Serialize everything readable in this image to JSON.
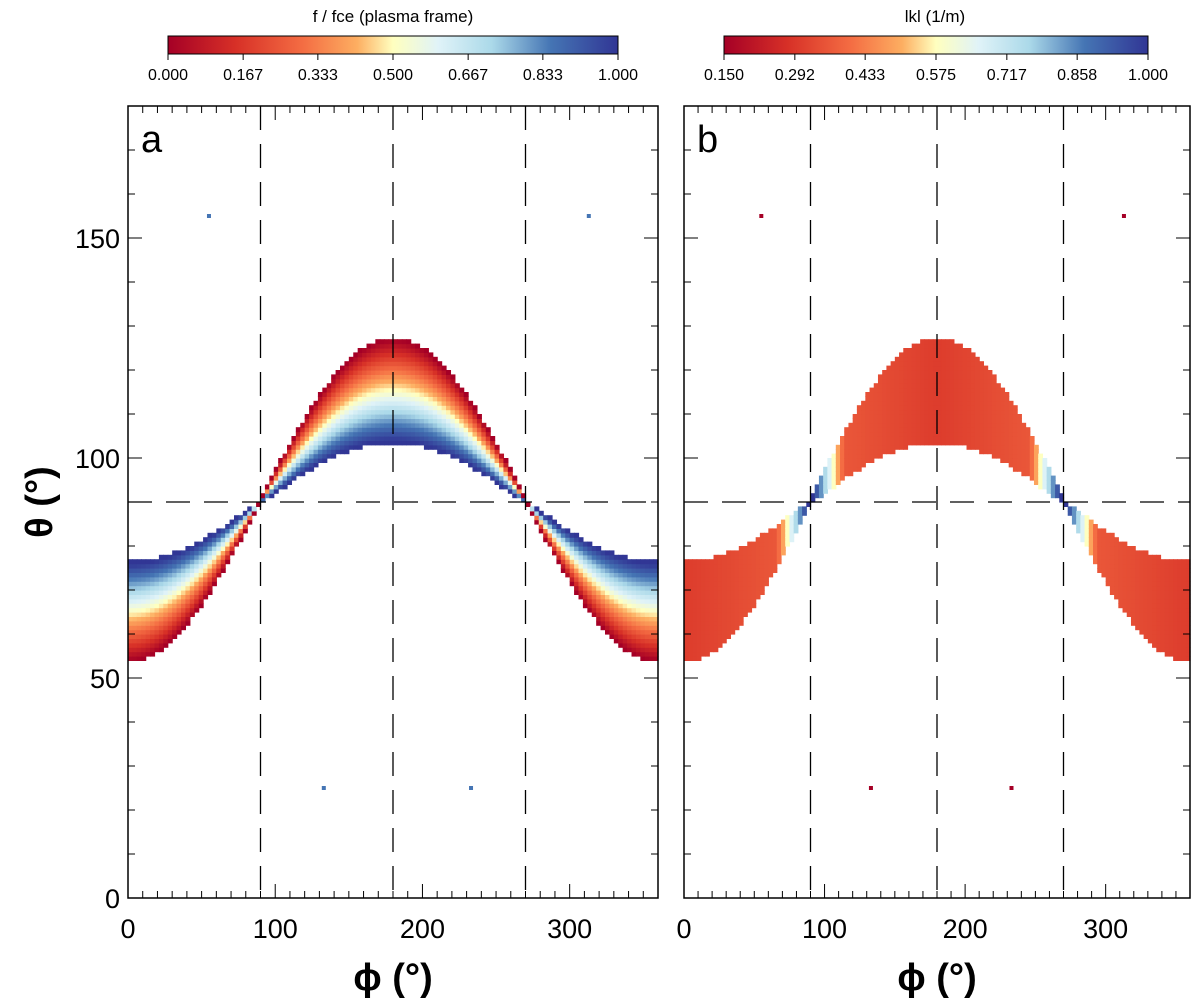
{
  "chart_data": [
    {
      "type": "heatmap",
      "panel_label": "a",
      "colorbar": {
        "label": "f / fce (plasma frame)",
        "ticks": [
          "0.000",
          "0.167",
          "0.333",
          "0.500",
          "0.667",
          "0.833",
          "1.000"
        ],
        "range": [
          0,
          1
        ],
        "colormap": "red-yellow-white-blue"
      },
      "xlabel": "ϕ (°)",
      "ylabel": "θ (°)",
      "xlim": [
        0,
        360
      ],
      "ylim": [
        0,
        180
      ],
      "xticks": [
        "0",
        "100",
        "200",
        "300"
      ],
      "yticks": [
        "0",
        "50",
        "100",
        "150"
      ],
      "dashed_vertical_lines_phi": [
        90,
        180,
        270
      ],
      "dashed_horizontal_line_theta": 90,
      "band_theta_limits_deg": {
        "inner_edge": [
          76,
          104
        ],
        "outer_edge": [
          54,
          127
        ]
      },
      "value_variation": "0 at outer edge (red) rising to 1 at inner edge (blue)",
      "isolated_points": [
        {
          "phi": 55,
          "theta": 155
        },
        {
          "phi": 313,
          "theta": 155
        },
        {
          "phi": 133,
          "theta": 25
        },
        {
          "phi": 233,
          "theta": 25
        }
      ]
    },
    {
      "type": "heatmap",
      "panel_label": "b",
      "colorbar": {
        "label": "lkl (1/m)",
        "ticks": [
          "0.150",
          "0.292",
          "0.433",
          "0.575",
          "0.717",
          "0.858",
          "1.000"
        ],
        "range": [
          0.15,
          1.0
        ],
        "colormap": "red-yellow-white-blue"
      },
      "xlabel": "ϕ (°)",
      "ylabel": "",
      "xlim": [
        0,
        360
      ],
      "ylim": [
        0,
        180
      ],
      "xticks": [
        "0",
        "100",
        "200",
        "300"
      ],
      "yticks": [],
      "dashed_vertical_lines_phi": [
        90,
        180,
        270
      ],
      "dashed_horizontal_line_theta": 90,
      "band_theta_limits_deg": {
        "inner_edge": [
          76,
          104
        ],
        "outer_edge": [
          54,
          127
        ]
      },
      "value_variation": "about 0.2-0.3 over most of band, rising to about 1 near phi = 90 and 270",
      "isolated_points": [
        {
          "phi": 55,
          "theta": 155
        },
        {
          "phi": 313,
          "theta": 155
        },
        {
          "phi": 133,
          "theta": 25
        },
        {
          "phi": 233,
          "theta": 25
        }
      ]
    }
  ]
}
